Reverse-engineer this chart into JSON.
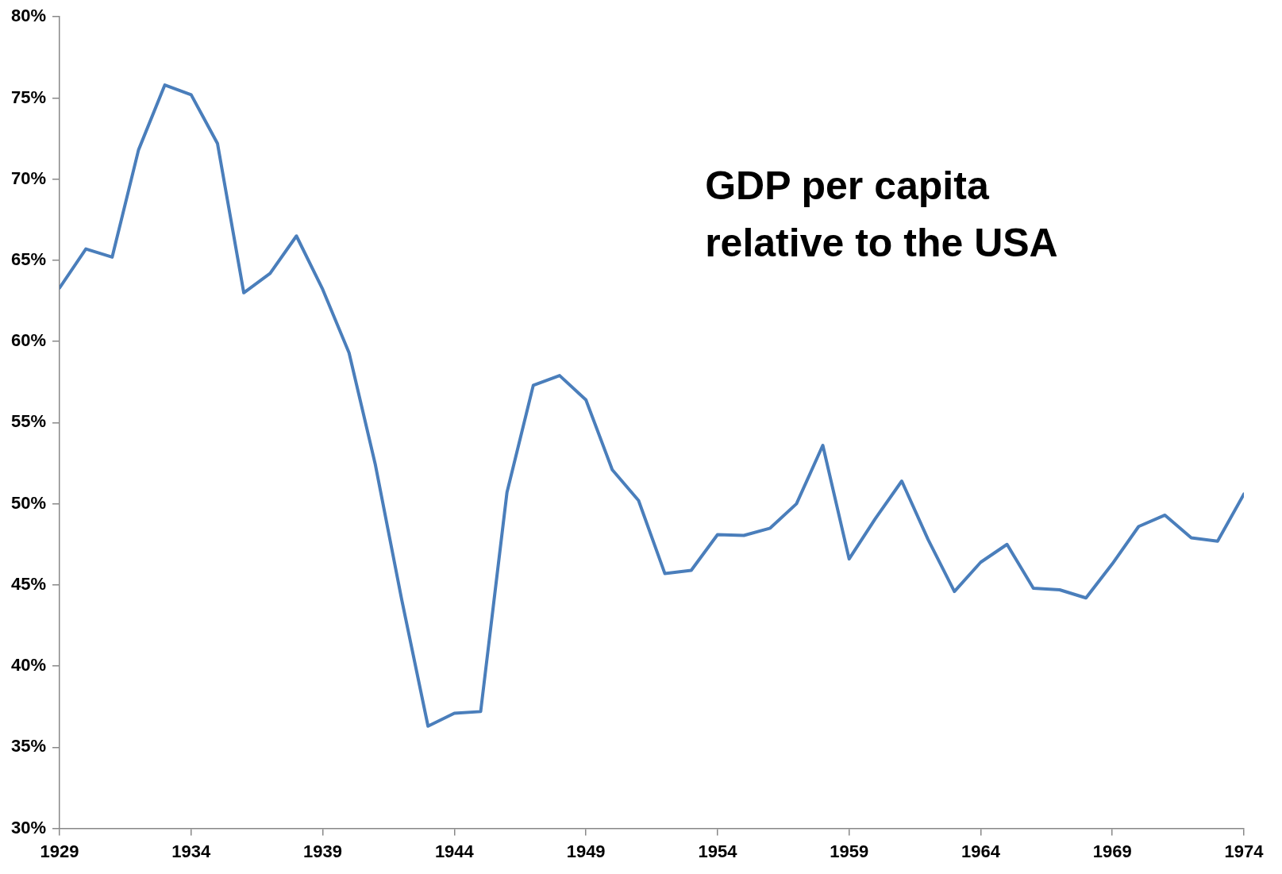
{
  "chart_data": {
    "type": "line",
    "x": [
      1929,
      1930,
      1931,
      1932,
      1933,
      1934,
      1935,
      1936,
      1937,
      1938,
      1939,
      1940,
      1941,
      1942,
      1943,
      1944,
      1945,
      1946,
      1947,
      1948,
      1949,
      1950,
      1951,
      1952,
      1953,
      1954,
      1955,
      1956,
      1957,
      1958,
      1959,
      1960,
      1961,
      1962,
      1963,
      1964,
      1965,
      1966,
      1967,
      1968,
      1969,
      1970,
      1971,
      1972,
      1973,
      1974
    ],
    "values": [
      63.3,
      65.7,
      65.2,
      71.8,
      75.8,
      75.2,
      72.2,
      63.0,
      64.2,
      66.5,
      63.2,
      59.3,
      52.4,
      44.1,
      36.3,
      37.1,
      37.2,
      50.7,
      57.3,
      57.9,
      56.4,
      52.1,
      50.2,
      45.7,
      45.9,
      48.1,
      48.05,
      48.5,
      50.0,
      53.6,
      46.6,
      49.1,
      51.4,
      47.8,
      44.6,
      46.4,
      47.5,
      44.8,
      44.7,
      44.2,
      46.3,
      48.6,
      49.3,
      47.9,
      47.7,
      50.6
    ],
    "color": "#4a7ebb",
    "marker": "none",
    "line_style": "solid",
    "grid": false,
    "legend": false,
    "xlim": [
      1929,
      1974
    ],
    "xticks": [
      1929,
      1934,
      1939,
      1944,
      1949,
      1954,
      1959,
      1964,
      1969,
      1974
    ],
    "ylim": [
      30,
      80
    ],
    "yticks": [
      {
        "value": 30,
        "label": "30%"
      },
      {
        "value": 35,
        "label": "35%"
      },
      {
        "value": 40,
        "label": "40%"
      },
      {
        "value": 45,
        "label": "45%"
      },
      {
        "value": 50,
        "label": "50%"
      },
      {
        "value": 55,
        "label": "55%"
      },
      {
        "value": 60,
        "label": "60%"
      },
      {
        "value": 65,
        "label": "65%"
      },
      {
        "value": 70,
        "label": "70%"
      },
      {
        "value": 75,
        "label": "75%"
      },
      {
        "value": 80,
        "label": "80%"
      }
    ],
    "annotations": [
      "GDP per capita relative to the USA"
    ]
  }
}
